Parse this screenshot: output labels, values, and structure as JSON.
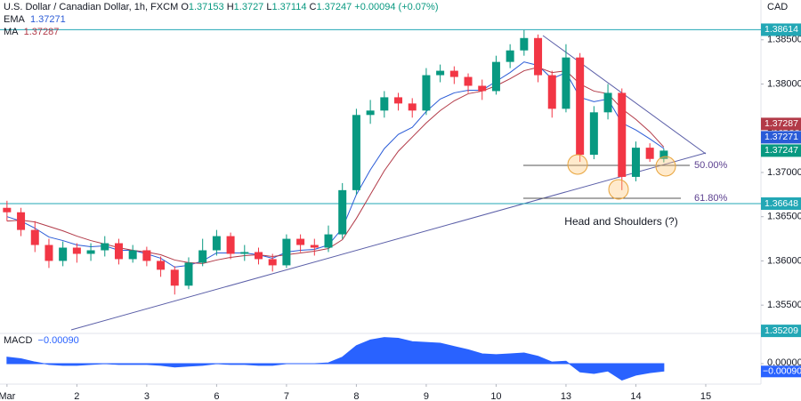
{
  "chart_data": {
    "type": "candlestick",
    "title": "U.S. Dollar / Canadian Dollar, 1h, FXCM",
    "ohlc_labels": [
      "O",
      "H",
      "L",
      "C"
    ],
    "change": "+0.00094 (+0.07%)",
    "currency": "CAD",
    "x": [
      0,
      0.2,
      0.4,
      0.6,
      0.8,
      1,
      1.2,
      1.4,
      1.6,
      1.8,
      2,
      2.2,
      2.4,
      2.6,
      2.8,
      3,
      3.2,
      3.4,
      3.6,
      3.8,
      4,
      4.2,
      4.4,
      4.6,
      4.8,
      5,
      5.2,
      5.4,
      5.6,
      5.8,
      6,
      6.2,
      6.4,
      6.6,
      6.8,
      7,
      7.2,
      7.4,
      7.6,
      7.8,
      8,
      8.2,
      8.4,
      8.6,
      8.8,
      9,
      9.2,
      9.4
    ],
    "open": [
      1.366,
      1.3655,
      1.3635,
      1.3618,
      1.36,
      1.3615,
      1.3608,
      1.3612,
      1.362,
      1.3602,
      1.3612,
      1.36,
      1.359,
      1.3572,
      1.3598,
      1.3612,
      1.3628,
      1.3608,
      1.361,
      1.3602,
      1.3595,
      1.3625,
      1.3618,
      1.3615,
      1.363,
      1.368,
      1.3765,
      1.377,
      1.3785,
      1.3778,
      1.377,
      1.381,
      1.3815,
      1.3808,
      1.3798,
      1.3792,
      1.3825,
      1.3838,
      1.3852,
      1.381,
      1.3772,
      1.383,
      1.372,
      1.3768,
      1.379,
      1.3695,
      1.3728,
      1.37153
    ],
    "high": [
      1.3668,
      1.366,
      1.3645,
      1.3625,
      1.3622,
      1.362,
      1.362,
      1.3628,
      1.3625,
      1.3618,
      1.3616,
      1.3605,
      1.3594,
      1.3604,
      1.3625,
      1.3635,
      1.3632,
      1.3618,
      1.3615,
      1.3608,
      1.363,
      1.363,
      1.3625,
      1.364,
      1.3688,
      1.3772,
      1.3782,
      1.3792,
      1.379,
      1.3784,
      1.3818,
      1.3822,
      1.382,
      1.3812,
      1.3805,
      1.3832,
      1.3845,
      1.3861,
      1.3856,
      1.3815,
      1.3845,
      1.3835,
      1.3775,
      1.38,
      1.3795,
      1.3735,
      1.3733,
      1.3727
    ],
    "low": [
      1.3645,
      1.3628,
      1.361,
      1.3592,
      1.3594,
      1.3598,
      1.36,
      1.3605,
      1.3596,
      1.3598,
      1.3594,
      1.3582,
      1.3562,
      1.3568,
      1.3594,
      1.3606,
      1.3602,
      1.36,
      1.3596,
      1.3588,
      1.3592,
      1.361,
      1.3606,
      1.361,
      1.3625,
      1.3675,
      1.3755,
      1.3762,
      1.377,
      1.3762,
      1.3765,
      1.3802,
      1.38,
      1.379,
      1.3782,
      1.3788,
      1.3818,
      1.3832,
      1.3802,
      1.3762,
      1.3768,
      1.3712,
      1.3715,
      1.376,
      1.368,
      1.369,
      1.3712,
      1.37114
    ],
    "close": [
      1.3655,
      1.3635,
      1.3618,
      1.36,
      1.3615,
      1.3608,
      1.3612,
      1.362,
      1.3602,
      1.3612,
      1.36,
      1.359,
      1.3572,
      1.3598,
      1.3612,
      1.3628,
      1.3608,
      1.361,
      1.3602,
      1.3595,
      1.3625,
      1.3618,
      1.3615,
      1.363,
      1.368,
      1.3765,
      1.377,
      1.3785,
      1.3778,
      1.377,
      1.381,
      1.3815,
      1.3808,
      1.3798,
      1.3792,
      1.3825,
      1.3838,
      1.3852,
      1.381,
      1.3772,
      1.383,
      1.372,
      1.3768,
      1.379,
      1.3695,
      1.3728,
      1.37153,
      1.37247
    ],
    "up_color": "#089981",
    "down_color": "#f23645",
    "xlim": [
      -0.1,
      10.79
    ],
    "xticks": [
      {
        "value": 0,
        "label": "Mar"
      },
      {
        "value": 1,
        "label": "2"
      },
      {
        "value": 2,
        "label": "3"
      },
      {
        "value": 3,
        "label": "6"
      },
      {
        "value": 4,
        "label": "7"
      },
      {
        "value": 5,
        "label": "8"
      },
      {
        "value": 6,
        "label": "9"
      },
      {
        "value": 7,
        "label": "10"
      },
      {
        "value": 8,
        "label": "13"
      },
      {
        "value": 9,
        "label": "14"
      },
      {
        "value": 10,
        "label": "15"
      }
    ],
    "ylim": [
      1.3518,
      1.3895
    ],
    "yticks": [
      {
        "value": 1.385,
        "label": "1.38500"
      },
      {
        "value": 1.38,
        "label": "1.38000"
      },
      {
        "value": 1.375,
        "label": "1.37500"
      },
      {
        "value": 1.37,
        "label": "1.37000"
      },
      {
        "value": 1.365,
        "label": "1.36500"
      },
      {
        "value": 1.36,
        "label": "1.36000"
      },
      {
        "value": 1.355,
        "label": "1.35500"
      }
    ],
    "series": [
      {
        "name": "EMA",
        "color": "#2a5bd7",
        "values": [
          1.365,
          1.3645,
          1.3637,
          1.3627,
          1.3623,
          1.3618,
          1.3616,
          1.3617,
          1.3612,
          1.3612,
          1.3608,
          1.3603,
          1.3593,
          1.3595,
          1.36,
          1.3609,
          1.3609,
          1.3609,
          1.3607,
          1.3603,
          1.361,
          1.3612,
          1.3613,
          1.3618,
          1.3637,
          1.3675,
          1.3703,
          1.3727,
          1.3743,
          1.3751,
          1.3769,
          1.3783,
          1.379,
          1.3793,
          1.3793,
          1.3803,
          1.3813,
          1.3825,
          1.3821,
          1.3806,
          1.3813,
          1.3785,
          1.378,
          1.3783,
          1.3756,
          1.3748,
          1.3738,
          1.37271
        ]
      },
      {
        "name": "MA",
        "color": "#b23a48",
        "values": [
          1.3645,
          1.3646,
          1.3644,
          1.3639,
          1.3634,
          1.3628,
          1.3623,
          1.3619,
          1.3615,
          1.3612,
          1.361,
          1.3607,
          1.3601,
          1.3598,
          1.3597,
          1.3601,
          1.3604,
          1.3606,
          1.3607,
          1.3605,
          1.3607,
          1.3609,
          1.3611,
          1.3614,
          1.3624,
          1.3648,
          1.3675,
          1.3702,
          1.3724,
          1.374,
          1.3756,
          1.377,
          1.3781,
          1.3789,
          1.3792,
          1.3798,
          1.3806,
          1.3815,
          1.3819,
          1.3813,
          1.3815,
          1.38,
          1.3792,
          1.3789,
          1.3772,
          1.376,
          1.3746,
          1.37287
        ]
      }
    ],
    "levels": [
      {
        "value": 1.38614,
        "line": true
      },
      {
        "value": 1.36648,
        "line": true
      },
      {
        "value": 1.35209,
        "line": false
      }
    ],
    "level_color": "#22a7b5",
    "annotations": {
      "fib_50": "50.00%",
      "fib_618": "61.80%",
      "pattern": "Head and Shoulders (?)"
    },
    "macd": {
      "type": "area",
      "name": "MACD",
      "last_label": "−0.00090",
      "color": "#2962ff",
      "values": [
        0.0008,
        0.0006,
        0.0002,
        -0.0001,
        -0.0002,
        -0.0002,
        -0.0001,
        0,
        -0.0001,
        -0.0001,
        -0.0001,
        -0.0002,
        -0.0004,
        -0.0003,
        -0.0002,
        0,
        -0.0001,
        -0.0001,
        -0.0002,
        -0.0002,
        0,
        0,
        0,
        0.0001,
        0.0008,
        0.0022,
        0.0029,
        0.0032,
        0.0031,
        0.0027,
        0.0026,
        0.0025,
        0.0021,
        0.0017,
        0.0012,
        0.0011,
        0.0012,
        0.0013,
        0.0009,
        0.0002,
        0.0003,
        -0.001,
        -0.0012,
        -0.0009,
        -0.002,
        -0.0014,
        -0.0011,
        -0.0009
      ],
      "ylim": [
        -0.0025,
        0.0037
      ],
      "yticks": [
        {
          "value": 0,
          "label": "0.00000"
        }
      ]
    }
  }
}
